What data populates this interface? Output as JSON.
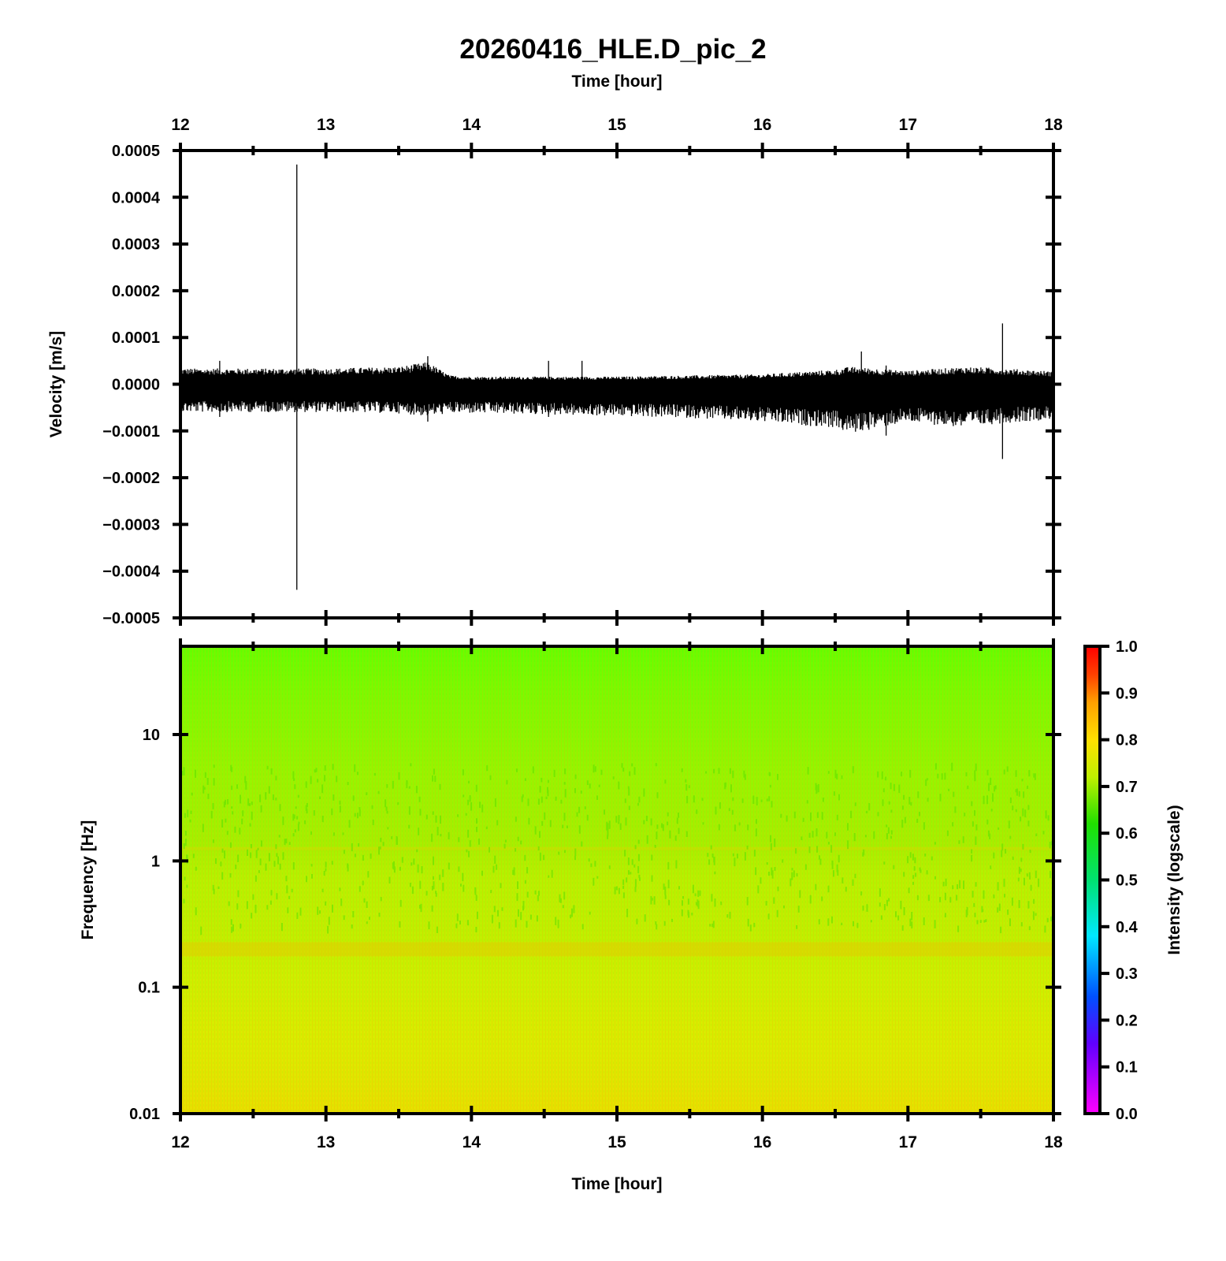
{
  "title": "20260416_HLE.D_pic_2",
  "colors": {
    "axis": "#000000",
    "trace": "#000000",
    "spectrogram_top": "#66ff00",
    "spectrogram_mid": "#b4f500",
    "spectrogram_low": "#d8f000",
    "spectrogram_band": "#e8c600"
  },
  "chart_data": [
    {
      "type": "line",
      "title": "20260416_HLE.D_pic_2",
      "xlabel": "Time [hour]",
      "ylabel": "Velocity [m/s]",
      "xlim": [
        12,
        18
      ],
      "ylim": [
        -0.0005,
        0.0005
      ],
      "x_ticks": [
        "12",
        "13",
        "14",
        "15",
        "16",
        "17",
        "18"
      ],
      "y_ticks": [
        "0.0005",
        "0.0004",
        "0.0003",
        "0.0002",
        "0.0001",
        "0.0000",
        "−0.0001",
        "−0.0002",
        "−0.0003",
        "−0.0004",
        "−0.0005"
      ],
      "grid": false,
      "series": [
        {
          "x": [
            12.0,
            12.5,
            13.0,
            13.5,
            13.7,
            13.85,
            14.0,
            14.5,
            15.0,
            15.5,
            16.0,
            16.5,
            16.6,
            17.0,
            17.4,
            17.6,
            18.0
          ],
          "envelope_upper": [
            2.7e-05,
            2.7e-05,
            2.7e-05,
            3e-05,
            3.8e-05,
            1.5e-05,
            1.3e-05,
            1.3e-05,
            1.3e-05,
            1.5e-05,
            1.7e-05,
            2.5e-05,
            3e-05,
            2.3e-05,
            3e-05,
            2.8e-05,
            2.2e-05
          ],
          "envelope_lower": [
            -4.8e-05,
            -4.8e-05,
            -4.8e-05,
            -5e-05,
            -5.5e-05,
            -5e-05,
            -5e-05,
            -5.2e-05,
            -5.5e-05,
            -5.8e-05,
            -6.5e-05,
            -7.5e-05,
            -8.5e-05,
            -6.5e-05,
            -7.5e-05,
            -6.8e-05,
            -6e-05
          ]
        }
      ],
      "spikes": [
        {
          "x": 12.27,
          "ymax": 5e-05,
          "ymin": -7e-05
        },
        {
          "x": 12.8,
          "ymax": 0.00047,
          "ymin": -0.00044
        },
        {
          "x": 13.7,
          "ymax": 6e-05,
          "ymin": -8e-05
        },
        {
          "x": 14.53,
          "ymax": 5e-05,
          "ymin": -7e-05
        },
        {
          "x": 14.76,
          "ymax": 5e-05,
          "ymin": -6e-05
        },
        {
          "x": 16.68,
          "ymax": 7e-05,
          "ymin": -9e-05
        },
        {
          "x": 16.85,
          "ymax": 4e-05,
          "ymin": -0.00011
        },
        {
          "x": 17.65,
          "ymax": 0.00013,
          "ymin": -0.00016
        }
      ]
    },
    {
      "type": "heatmap",
      "xlabel": "Time [hour]",
      "ylabel": "Frequency [Hz]",
      "xlim": [
        12,
        18
      ],
      "ylim": [
        0.01,
        50
      ],
      "y_scale": "log",
      "x_ticks": [
        "12",
        "13",
        "14",
        "15",
        "16",
        "17",
        "18"
      ],
      "y_ticks": [
        "10",
        "1",
        "0.1",
        "0.01"
      ],
      "colorbar": {
        "label": "Intensity (logscale)",
        "range": [
          0.0,
          1.0
        ],
        "ticks": [
          "1.0",
          "0.9",
          "0.8",
          "0.7",
          "0.6",
          "0.5",
          "0.4",
          "0.3",
          "0.2",
          "0.1",
          "0.0"
        ],
        "colors": [
          "#ff00ff",
          "#6000ff",
          "#0050ff",
          "#00e8ff",
          "#00e070",
          "#20e000",
          "#c0f000",
          "#ffe000",
          "#ffa000",
          "#ff4000",
          "#ff0000"
        ]
      },
      "frequency_profile": [
        {
          "hz": 50,
          "intensity": 0.64
        },
        {
          "hz": 10,
          "intensity": 0.68
        },
        {
          "hz": 3,
          "intensity": 0.7
        },
        {
          "hz": 1.3,
          "intensity": 0.76
        },
        {
          "hz": 1,
          "intensity": 0.74
        },
        {
          "hz": 0.3,
          "intensity": 0.75
        },
        {
          "hz": 0.2,
          "intensity": 0.84
        },
        {
          "hz": 0.1,
          "intensity": 0.77
        },
        {
          "hz": 0.03,
          "intensity": 0.8
        },
        {
          "hz": 0.01,
          "intensity": 0.84
        }
      ]
    }
  ]
}
